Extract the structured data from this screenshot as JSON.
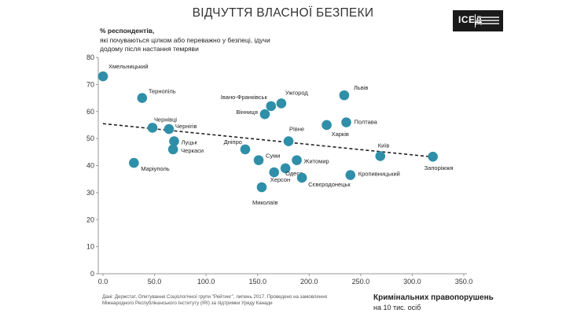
{
  "header": {
    "title": "ВІДЧУТТЯ ВЛАСНОЇ БЕЗПЕКИ"
  },
  "logo": {
    "text": "ІСЕД"
  },
  "colors": {
    "point": "#2f8fa8",
    "trend": "#222222",
    "axis": "#9a9a9a"
  },
  "chart_data": {
    "type": "scatter",
    "title": "ВІДЧУТТЯ ВЛАСНОЇ БЕЗПЕКИ",
    "ylabel_bold": "%  респондентів,",
    "ylabel_rest": "які почуваються цілком або переважно у безпеці, ідучи додому після настання темряви",
    "xlabel_bold": "Кримінальних правопорушень",
    "xlabel_rest": "на 10 тис. осіб",
    "xlim": [
      0,
      350
    ],
    "ylim": [
      0,
      80
    ],
    "x_ticks": [
      "0.0",
      "50.0",
      "100.0",
      "150.0",
      "200.0",
      "250.0",
      "300.0",
      "350.0"
    ],
    "y_ticks": [
      "0",
      "10",
      "20",
      "30",
      "40",
      "50",
      "60",
      "70",
      "80"
    ],
    "grid": false,
    "trendline": {
      "style": "dashed",
      "from": [
        0,
        55.5
      ],
      "to": [
        320,
        43.2
      ]
    },
    "points": [
      {
        "name": "Хмельницький",
        "x": 0,
        "y": 73
      },
      {
        "name": "Тернопіль",
        "x": 38,
        "y": 65
      },
      {
        "name": "Чернівці",
        "x": 48,
        "y": 54
      },
      {
        "name": "Чернігів",
        "x": 64,
        "y": 53.5
      },
      {
        "name": "Луцьк",
        "x": 69,
        "y": 49
      },
      {
        "name": "Черкаси",
        "x": 68,
        "y": 46
      },
      {
        "name": "Маріуполь",
        "x": 30,
        "y": 41
      },
      {
        "name": "Дніпро",
        "x": 138,
        "y": 46
      },
      {
        "name": "Суми",
        "x": 151,
        "y": 42
      },
      {
        "name": "Івано-Франківськ",
        "x": 163,
        "y": 62
      },
      {
        "name": "Ужгород",
        "x": 173,
        "y": 63
      },
      {
        "name": "Вінниця",
        "x": 157,
        "y": 59
      },
      {
        "name": "Рівне",
        "x": 180,
        "y": 49
      },
      {
        "name": "Житомир",
        "x": 188,
        "y": 42
      },
      {
        "name": "Одеса",
        "x": 177,
        "y": 39
      },
      {
        "name": "Херсон",
        "x": 166,
        "y": 37.5
      },
      {
        "name": "Сєвєродонецьк",
        "x": 193,
        "y": 35.5
      },
      {
        "name": "Миколаїв",
        "x": 154,
        "y": 32
      },
      {
        "name": "Львів",
        "x": 234,
        "y": 66
      },
      {
        "name": "Полтава",
        "x": 236,
        "y": 56
      },
      {
        "name": "Харків",
        "x": 217,
        "y": 55
      },
      {
        "name": "Київ",
        "x": 269,
        "y": 43.5
      },
      {
        "name": "Кропивницький",
        "x": 240,
        "y": 36.5
      },
      {
        "name": "Запоріжжя",
        "x": 320,
        "y": 43.3
      }
    ]
  },
  "source": "Дані: Держстат, Опитування Соціологічної групи \"Рейтинг\", липень 2017. Проведено на замовлення Міжнародного Республіканського Інституту (IRI) за підтримки Уряду Канади"
}
